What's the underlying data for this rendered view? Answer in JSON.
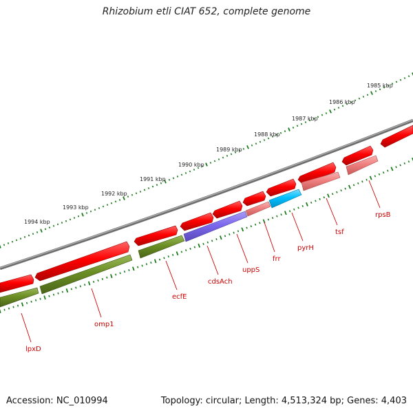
{
  "title": "Rhizobium etli CIAT 652, complete genome",
  "footer": {
    "accession": "Accession: NC_010994",
    "topology": "Topology: circular; Length: 4,513,324 bp; Genes: 4,403"
  },
  "scale_labels": [
    "1994 kbp",
    "1993 kbp",
    "1992 kbp",
    "1991 kbp",
    "1990 kbp",
    "1989 kbp",
    "1988 kbp",
    "1987 kbp",
    "1986 kbp",
    "1985 kbp"
  ],
  "genes": [
    "lpxD",
    "omp1",
    "ecfE",
    "cdsAch",
    "uppS",
    "frr",
    "pyrH",
    "tsf",
    "rpsB"
  ],
  "colors": {
    "backbone": "#808080",
    "cds": "#ff0000",
    "gene_olive": "#6b8e23",
    "gene_purple": "#7b68ee",
    "gene_pink": "#f08080",
    "gene_cyan": "#00bfff",
    "ticks": "#1a7a1a",
    "labels": "#cc0000"
  }
}
